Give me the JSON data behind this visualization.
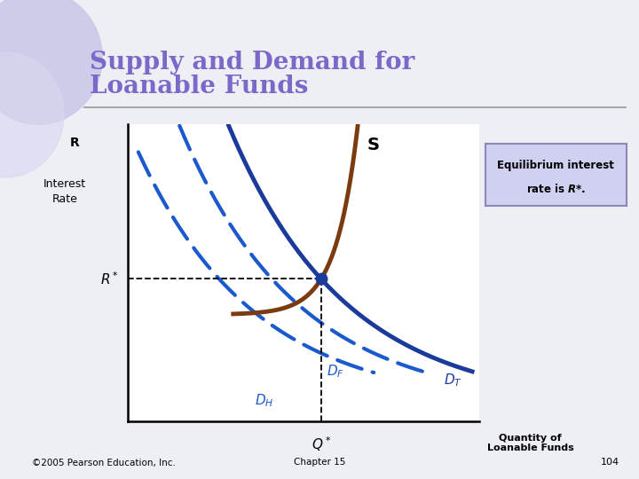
{
  "title_line1": "Supply and Demand for",
  "title_line2": "Loanable Funds",
  "title_color": "#7b68c8",
  "title_fontsize": 20,
  "bg_color": "#eeeef5",
  "plot_bg": "#ffffff",
  "supply_color": "#7b3a10",
  "demand_color": "#1a3a9c",
  "dashed_color": "#1a5acc",
  "equil_color": "#1a3a9c",
  "copyright": "©2005 Pearson Education, Inc.",
  "chapter": "Chapter 15",
  "page": "104",
  "xmin": 0,
  "xmax": 10,
  "ymin": 0,
  "ymax": 10,
  "R_star": 4.8,
  "Q_star": 5.5,
  "eq_box_bg": "#d0d0f0",
  "eq_box_edge": "#8888bb"
}
